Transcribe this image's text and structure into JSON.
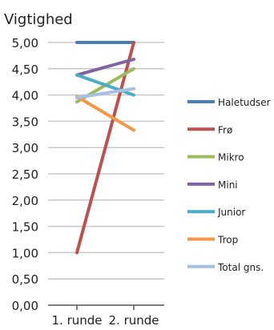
{
  "chart_data": {
    "type": "line",
    "title": "Vigtighed",
    "categories": [
      "1. runde",
      "2. runde"
    ],
    "ylim": [
      0,
      5
    ],
    "yticks": [
      "0,00",
      "0,50",
      "1,00",
      "1,50",
      "2,00",
      "2,50",
      "3,00",
      "3,50",
      "4,00",
      "4,50",
      "5,00"
    ],
    "grid": true,
    "legend_position": "right",
    "series": [
      {
        "name": "Haletudser",
        "color": "#4a7ebb",
        "values": [
          5.0,
          5.0
        ]
      },
      {
        "name": "Frø",
        "color": "#c0504d",
        "values": [
          1.0,
          5.0
        ]
      },
      {
        "name": "Mikro",
        "color": "#9bbb59",
        "values": [
          3.87,
          4.5
        ]
      },
      {
        "name": "Mini",
        "color": "#8064a2",
        "values": [
          4.38,
          4.68
        ]
      },
      {
        "name": "Junior",
        "color": "#4bacc6",
        "values": [
          4.38,
          4.0
        ]
      },
      {
        "name": "Trop",
        "color": "#f79646",
        "values": [
          3.97,
          3.33
        ]
      },
      {
        "name": "Total gns.",
        "color": "#a6bfe3",
        "values": [
          3.95,
          4.12
        ]
      }
    ]
  }
}
